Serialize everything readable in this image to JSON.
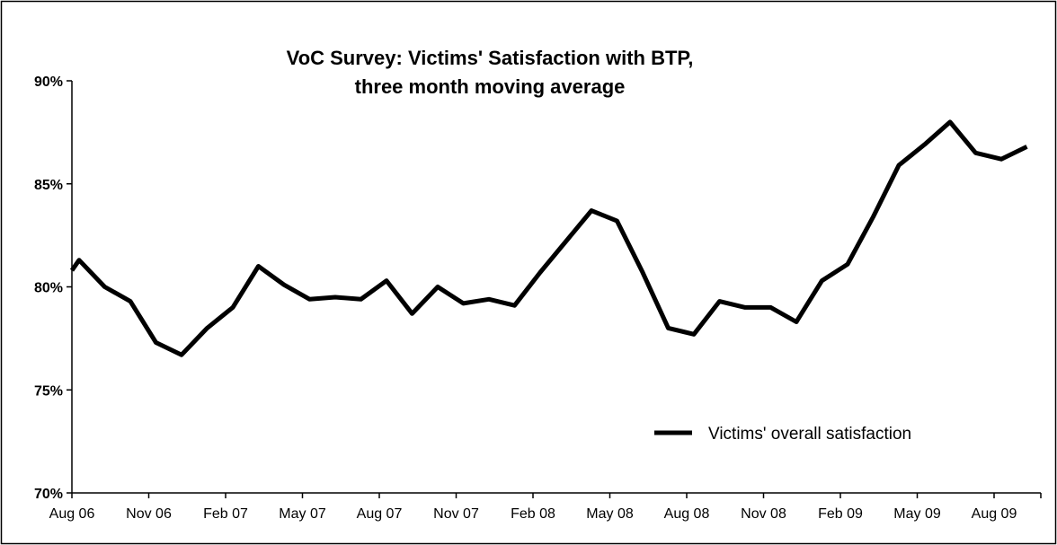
{
  "chart_data": {
    "type": "line",
    "title": "VoC Survey: Victims' Satisfaction with BTP,",
    "subtitle": "three month moving average",
    "xlabel": "",
    "ylabel": "",
    "ylim": [
      0.7,
      0.9
    ],
    "yticks": [
      0.7,
      0.75,
      0.8,
      0.85,
      0.9
    ],
    "ytick_labels": [
      "70%",
      "75%",
      "80%",
      "85%",
      "90%"
    ],
    "xtick_labels": [
      "Aug 06",
      "Nov 06",
      "Feb 07",
      "May 07",
      "Aug 07",
      "Nov 07",
      "Feb 08",
      "May 08",
      "Aug 08",
      "Nov 08",
      "Feb 09",
      "May 09",
      "Aug 09"
    ],
    "categories": [
      "Aug 06",
      "Sep 06",
      "Oct 06",
      "Nov 06",
      "Dec 06",
      "Jan 07",
      "Feb 07",
      "Mar 07",
      "Apr 07",
      "May 07",
      "Jun 07",
      "Jul 07",
      "Aug 07",
      "Sep 07",
      "Oct 07",
      "Nov 07",
      "Dec 07",
      "Jan 08",
      "Feb 08",
      "Mar 08",
      "Apr 08",
      "May 08",
      "Jun 08",
      "Jul 08",
      "Aug 08",
      "Sep 08",
      "Oct 08",
      "Nov 08",
      "Dec 08",
      "Jan 09",
      "Feb 09",
      "Mar 09",
      "Apr 09",
      "May 09",
      "Jun 09",
      "Jul 09",
      "Aug 09",
      "Sep 09"
    ],
    "series": [
      {
        "name": "Victims' overall satisfaction",
        "color": "#000000",
        "values": [
          0.813,
          0.8,
          0.793,
          0.773,
          0.767,
          0.78,
          0.79,
          0.81,
          0.801,
          0.794,
          0.795,
          0.794,
          0.803,
          0.787,
          0.8,
          0.792,
          0.794,
          0.791,
          0.807,
          0.822,
          0.837,
          0.832,
          0.807,
          0.78,
          0.777,
          0.793,
          0.79,
          0.79,
          0.783,
          0.803,
          0.811,
          0.834,
          0.859,
          0.869,
          0.88,
          0.865,
          0.862,
          0.868
        ]
      }
    ],
    "legend_position": "lower-right",
    "grid": false
  }
}
